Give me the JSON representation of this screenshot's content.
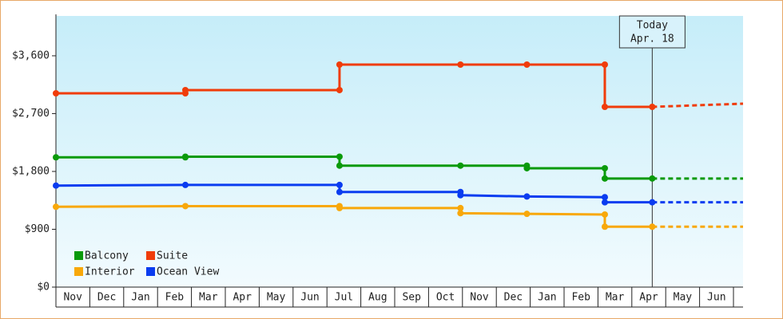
{
  "chart_data": {
    "type": "line",
    "categories": [
      "Nov",
      "Dec",
      "Jan",
      "Feb",
      "Mar",
      "Apr",
      "May",
      "Jun",
      "Jul",
      "Aug",
      "Sep",
      "Oct",
      "Nov",
      "Dec",
      "Jan",
      "Feb",
      "Mar",
      "Apr",
      "May",
      "Jun"
    ],
    "xlim": [
      0,
      20.28
    ],
    "ylim": [
      0,
      4220
    ],
    "yticks": [
      {
        "value": 0,
        "label": "$0"
      },
      {
        "value": 900,
        "label": "$900"
      },
      {
        "value": 1800,
        "label": "$1,800"
      },
      {
        "value": 2700,
        "label": "$2,700"
      },
      {
        "value": 3600,
        "label": "$3,600"
      }
    ],
    "grid": false,
    "legend": "bottom-left",
    "today": {
      "x": 17.6,
      "label": [
        "Today",
        "Apr. 18"
      ]
    },
    "series": [
      {
        "name": "Balcony",
        "color": "#0a9a0a",
        "x": [
          0,
          3.82,
          3.82,
          8.37,
          8.37,
          11.94,
          13.9,
          13.9,
          16.2,
          16.2,
          17.6
        ],
        "values": [
          2020,
          2020,
          2030,
          2030,
          1890,
          1890,
          1890,
          1850,
          1850,
          1690,
          1690
        ],
        "forecast": {
          "x": [
            17.6,
            20.28
          ],
          "values": [
            1690,
            1690
          ]
        }
      },
      {
        "name": "Suite",
        "color": "#f03c0a",
        "x": [
          0,
          3.82,
          3.82,
          8.37,
          8.37,
          11.94,
          13.9,
          16.2,
          16.2,
          17.6
        ],
        "values": [
          3016,
          3016,
          3066,
          3066,
          3463,
          3463,
          3463,
          3463,
          2805,
          2805
        ],
        "forecast": {
          "x": [
            17.6,
            20.28
          ],
          "values": [
            2805,
            2855
          ]
        }
      },
      {
        "name": "Interior",
        "color": "#f8a80a",
        "x": [
          0,
          3.82,
          8.37,
          8.37,
          11.94,
          11.94,
          13.9,
          16.2,
          16.2,
          17.6
        ],
        "values": [
          1250,
          1260,
          1260,
          1230,
          1230,
          1150,
          1140,
          1130,
          940,
          940
        ],
        "forecast": {
          "x": [
            17.6,
            20.28
          ],
          "values": [
            940,
            940
          ]
        }
      },
      {
        "name": "Ocean View",
        "color": "#0a3cf0",
        "x": [
          0,
          3.82,
          8.37,
          8.37,
          11.94,
          11.94,
          13.9,
          16.2,
          16.2,
          17.6
        ],
        "values": [
          1580,
          1590,
          1590,
          1480,
          1480,
          1430,
          1410,
          1400,
          1320,
          1320
        ],
        "forecast": {
          "x": [
            17.6,
            20.28
          ],
          "values": [
            1320,
            1320
          ]
        }
      }
    ]
  }
}
